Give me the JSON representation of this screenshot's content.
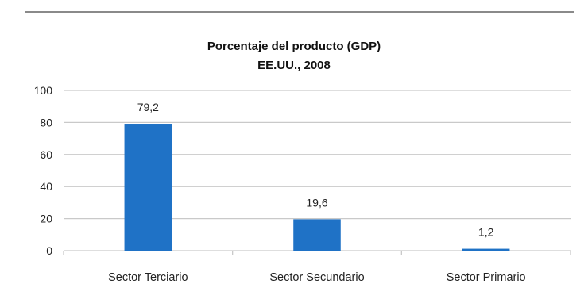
{
  "chart_data": {
    "type": "bar",
    "title": "Porcentaje del producto (GDP)",
    "subtitle": "EE.UU., 2008",
    "categories": [
      "Sector Terciario",
      "Sector Secundario",
      "Sector Primario"
    ],
    "values": [
      79.2,
      19.6,
      1.2
    ],
    "value_labels": [
      "79,2",
      "19,6",
      "1,2"
    ],
    "ylim": [
      0,
      100
    ],
    "yticks": [
      0,
      20,
      40,
      60,
      80,
      100
    ],
    "grid": true,
    "legend": "none",
    "bar_color": "#1f72c6",
    "grid_color": "#c9c9c9"
  }
}
